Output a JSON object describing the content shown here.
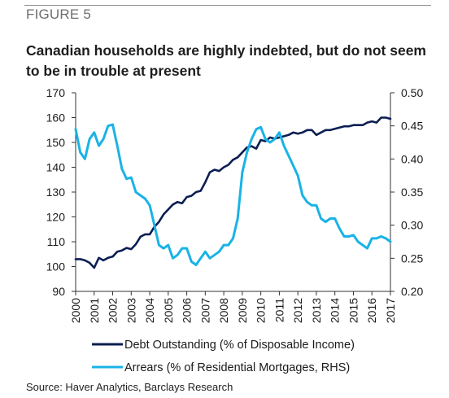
{
  "figure": {
    "label": "FIGURE 5",
    "title": "Canadian households are highly indebted, but do not seem to be in trouble at present",
    "source": "Source: Haver Analytics, Barclays Research"
  },
  "colors": {
    "debt": "#0b1e52",
    "arrears": "#19b3e6",
    "axis": "#333333"
  },
  "chart_data": {
    "type": "line",
    "x_tick_labels": [
      "2000",
      "2001",
      "2002",
      "2003",
      "2004",
      "2005",
      "2006",
      "2007",
      "2008",
      "2009",
      "2010",
      "2011",
      "2012",
      "2013",
      "2014",
      "2015",
      "2016",
      "2017"
    ],
    "xlim": [
      2000,
      2017
    ],
    "ylim_left": [
      90,
      170
    ],
    "ylim_right": [
      0.2,
      0.5
    ],
    "y_left_ticks": [
      "90",
      "100",
      "110",
      "120",
      "130",
      "140",
      "150",
      "160",
      "170"
    ],
    "y_right_ticks": [
      "0.20",
      "0.25",
      "0.30",
      "0.35",
      "0.40",
      "0.45",
      "0.50"
    ],
    "legend_position": "bottom",
    "series": [
      {
        "name": "Debt Outstanding (% of Disposable Income)",
        "axis": "left",
        "x": [
          2000,
          2000.25,
          2000.5,
          2000.75,
          2001,
          2001.25,
          2001.5,
          2001.75,
          2002,
          2002.25,
          2002.5,
          2002.75,
          2003,
          2003.25,
          2003.5,
          2003.75,
          2004,
          2004.25,
          2004.5,
          2004.75,
          2005,
          2005.25,
          2005.5,
          2005.75,
          2006,
          2006.25,
          2006.5,
          2006.75,
          2007,
          2007.25,
          2007.5,
          2007.75,
          2008,
          2008.25,
          2008.5,
          2008.75,
          2009,
          2009.25,
          2009.5,
          2009.75,
          2010,
          2010.25,
          2010.5,
          2010.75,
          2011,
          2011.25,
          2011.5,
          2011.75,
          2012,
          2012.25,
          2012.5,
          2012.75,
          2013,
          2013.25,
          2013.5,
          2013.75,
          2014,
          2014.25,
          2014.5,
          2014.75,
          2015,
          2015.25,
          2015.5,
          2015.75,
          2016,
          2016.25,
          2016.5,
          2016.75,
          2017
        ],
        "values": [
          103,
          103,
          102.5,
          101.5,
          99.5,
          103.5,
          102.5,
          103.5,
          104,
          106,
          106.5,
          107.5,
          107,
          109,
          112,
          113,
          113,
          116,
          118,
          121,
          123,
          125,
          126,
          125.5,
          128,
          128.5,
          130,
          130.5,
          134,
          138,
          139,
          138.5,
          140,
          141,
          143,
          144,
          146,
          148,
          148.5,
          147.5,
          151,
          150.5,
          152,
          151.5,
          152,
          152.5,
          153,
          154,
          153.5,
          154,
          155,
          155,
          153,
          154,
          155,
          155,
          155.5,
          156,
          156.5,
          156.5,
          157,
          157,
          157,
          158,
          158.5,
          158,
          160,
          160,
          159.5
        ]
      },
      {
        "name": "Arrears (% of Residential Mortgages, RHS)",
        "axis": "right",
        "x": [
          2000,
          2000.25,
          2000.5,
          2000.75,
          2001,
          2001.25,
          2001.5,
          2001.75,
          2002,
          2002.25,
          2002.5,
          2002.75,
          2003,
          2003.25,
          2003.5,
          2003.75,
          2004,
          2004.25,
          2004.5,
          2004.75,
          2005,
          2005.25,
          2005.5,
          2005.75,
          2006,
          2006.25,
          2006.5,
          2006.75,
          2007,
          2007.25,
          2007.5,
          2007.75,
          2008,
          2008.25,
          2008.5,
          2008.75,
          2009,
          2009.25,
          2009.5,
          2009.75,
          2010,
          2010.25,
          2010.5,
          2010.75,
          2011,
          2011.25,
          2011.5,
          2011.75,
          2012,
          2012.25,
          2012.5,
          2012.75,
          2013,
          2013.25,
          2013.5,
          2013.75,
          2014,
          2014.25,
          2014.5,
          2014.75,
          2015,
          2015.25,
          2015.5,
          2015.75,
          2016,
          2016.25,
          2016.5,
          2016.75,
          2017
        ],
        "values": [
          0.445,
          0.41,
          0.4,
          0.43,
          0.44,
          0.42,
          0.43,
          0.45,
          0.452,
          0.42,
          0.385,
          0.37,
          0.372,
          0.35,
          0.345,
          0.34,
          0.33,
          0.3,
          0.27,
          0.265,
          0.27,
          0.25,
          0.255,
          0.265,
          0.265,
          0.245,
          0.24,
          0.25,
          0.26,
          0.25,
          0.255,
          0.26,
          0.27,
          0.27,
          0.28,
          0.31,
          0.38,
          0.41,
          0.43,
          0.445,
          0.448,
          0.43,
          0.425,
          0.43,
          0.44,
          0.42,
          0.405,
          0.39,
          0.375,
          0.345,
          0.335,
          0.33,
          0.33,
          0.31,
          0.305,
          0.31,
          0.31,
          0.295,
          0.283,
          0.283,
          0.285,
          0.275,
          0.27,
          0.265,
          0.28,
          0.28,
          0.283,
          0.28,
          0.275
        ]
      }
    ]
  }
}
